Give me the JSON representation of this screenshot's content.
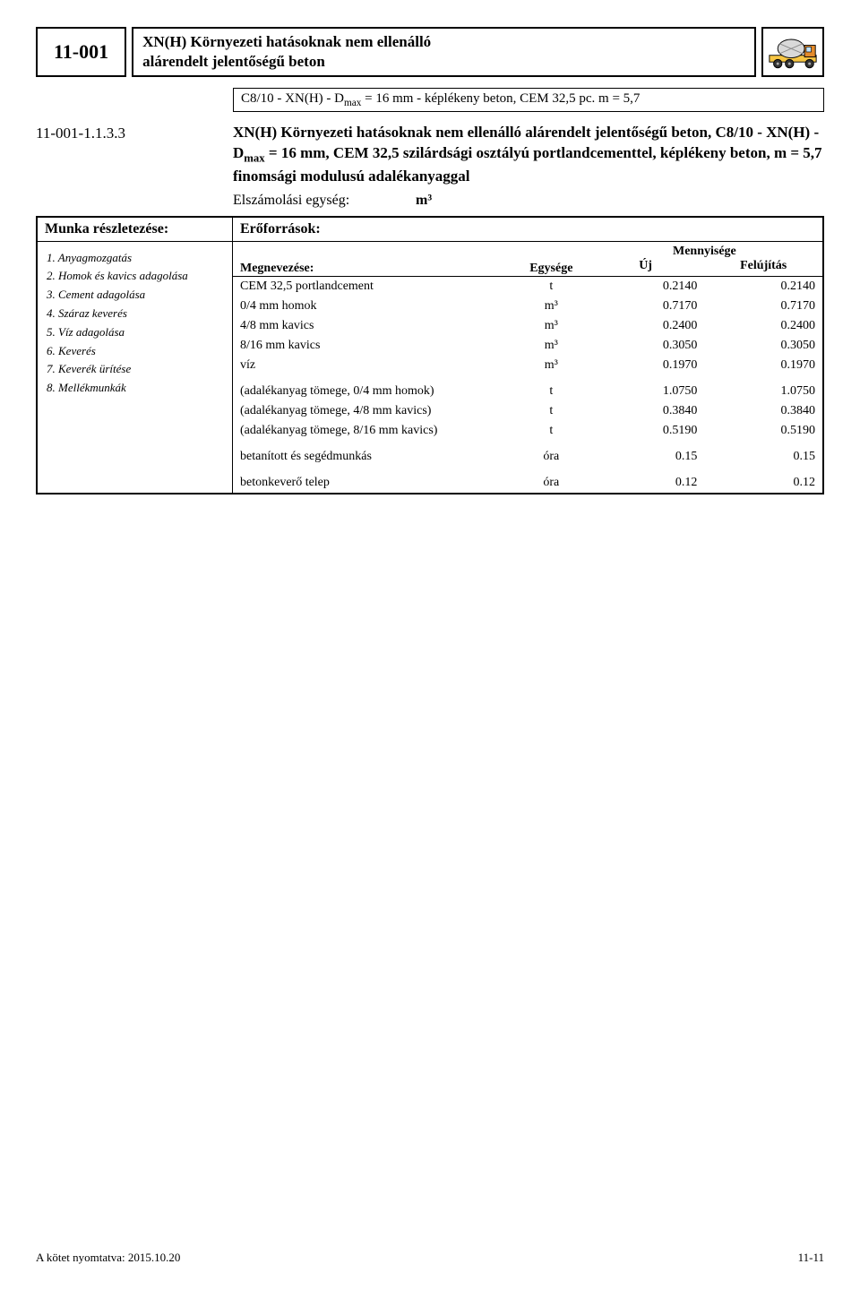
{
  "header": {
    "code": "11-001",
    "title_line1": "XN(H) Környezeti hatásoknak nem ellenálló",
    "title_line2": "alárendelt jelentőségű beton"
  },
  "sub_header_html": "C8/10 - XN(H) - D<sub>max</sub> = 16 mm - képlékeny beton, CEM 32,5 pc. m = 5,7",
  "spec": {
    "code": "11-001-1.1.3.3",
    "text_html": "XN(H) Környezeti hatásoknak nem ellenálló alárendelt jelentőségű beton, C8/10 - XN(H) - D<sub>max</sub> = 16 mm, CEM 32,5 szilárdsági osztályú portlandcementtel, képlékeny beton, m = 5,7 finomsági modulusú adalékanyaggal"
  },
  "unit": {
    "label": "Elszámolási egység:",
    "value": "m³"
  },
  "sections": {
    "left": "Munka részletezése:",
    "right": "Erőforrások:"
  },
  "steps": [
    "1. Anyagmozgatás",
    "2. Homok és kavics adagolása",
    "3. Cement adagolása",
    "4. Száraz keverés",
    "5. Víz adagolása",
    "6. Keverés",
    "7. Keverék ürítése",
    "8. Mellékmunkák"
  ],
  "res_header": {
    "name": "Megnevezése:",
    "unit": "Egysége",
    "qty": "Mennyisége",
    "q1": "Új",
    "q2": "Felújítás"
  },
  "resources": [
    [
      {
        "name": "CEM 32,5 portlandcement",
        "unit": "t",
        "q1": "0.2140",
        "q2": "0.2140"
      },
      {
        "name": "0/4 mm homok",
        "unit": "m³",
        "q1": "0.7170",
        "q2": "0.7170"
      },
      {
        "name": "4/8 mm kavics",
        "unit": "m³",
        "q1": "0.2400",
        "q2": "0.2400"
      },
      {
        "name": "8/16 mm kavics",
        "unit": "m³",
        "q1": "0.3050",
        "q2": "0.3050"
      },
      {
        "name": "víz",
        "unit": "m³",
        "q1": "0.1970",
        "q2": "0.1970"
      }
    ],
    [
      {
        "name": "(adalékanyag tömege, 0/4 mm homok)",
        "unit": "t",
        "q1": "1.0750",
        "q2": "1.0750"
      },
      {
        "name": "(adalékanyag tömege, 4/8 mm kavics)",
        "unit": "t",
        "q1": "0.3840",
        "q2": "0.3840"
      },
      {
        "name": "(adalékanyag tömege, 8/16 mm kavics)",
        "unit": "t",
        "q1": "0.5190",
        "q2": "0.5190"
      }
    ],
    [
      {
        "name": "betanított és segédmunkás",
        "unit": "óra",
        "q1": "0.15",
        "q2": "0.15"
      }
    ],
    [
      {
        "name": "betonkeverő telep",
        "unit": "óra",
        "q1": "0.12",
        "q2": "0.12"
      }
    ]
  ],
  "footer": {
    "left": "A kötet nyomtatva: 2015.10.20",
    "right": "11-11"
  },
  "colors": {
    "truck_body": "#f6c543",
    "truck_drum": "#d9d9d9",
    "truck_cab": "#e38a2a",
    "wheel": "#333333"
  }
}
